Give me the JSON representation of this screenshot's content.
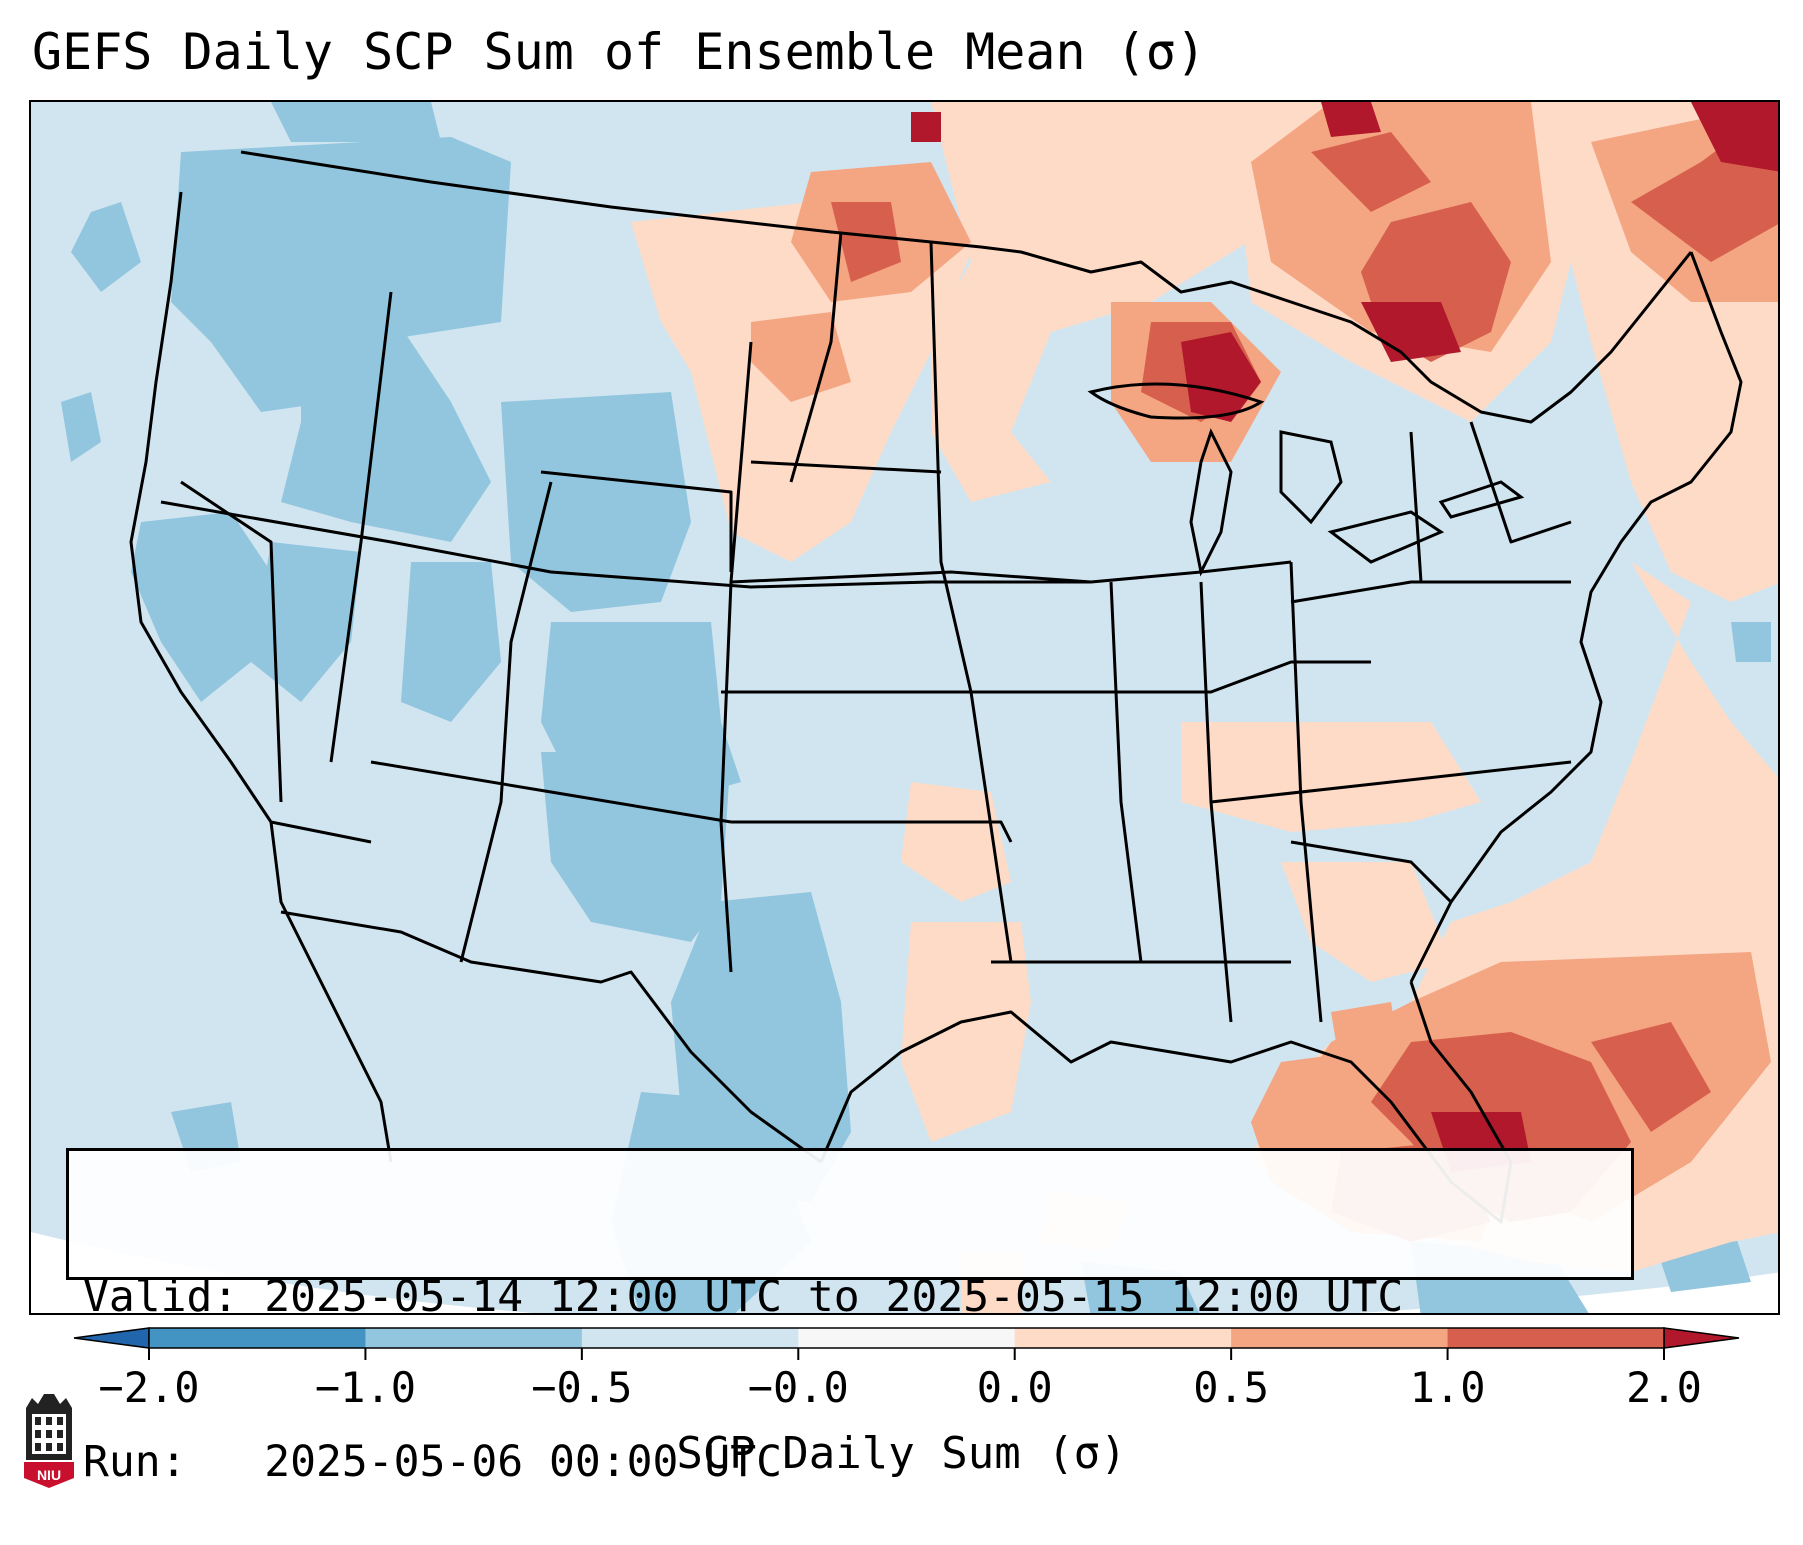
{
  "title": "GEFS Daily SCP Sum of Ensemble Mean (σ)",
  "info": {
    "valid_label": "Valid:",
    "valid_value": "2025-05-14 12:00 UTC to 2025-05-15 12:00 UTC",
    "run_label": "Run:",
    "run_value": "2025-05-06 00:00 UTC"
  },
  "colorbar": {
    "label": "SCP Daily Sum (σ)",
    "ticks": [
      "−2.0",
      "−1.0",
      "−0.5",
      "−0.0",
      "0.0",
      "0.5",
      "1.0",
      "2.0"
    ],
    "colors": [
      "#4393c3",
      "#92c5de",
      "#d1e5f0",
      "#f7f7f7",
      "#fddbc7",
      "#f4a582",
      "#d6604d"
    ],
    "under_color": "#2166ac",
    "over_color": "#b2182b"
  },
  "logo_text": "NIU",
  "map": {
    "region": "Contiguous United States",
    "field": "SCP daily sum standardized anomaly",
    "colors": {
      "neutral_blue": "#d1e5f0",
      "moderate_blue": "#92c5de",
      "light_red": "#fddbc7",
      "moderate_red": "#f4a582",
      "strong_red": "#d6604d",
      "extreme_red": "#b2182b"
    }
  }
}
